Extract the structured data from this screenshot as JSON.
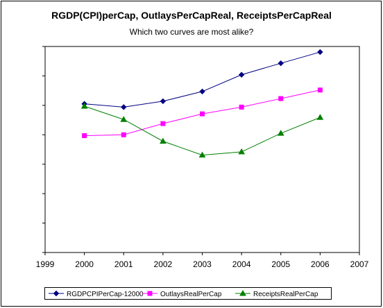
{
  "chart_data": {
    "type": "line",
    "title": "RGDP(CPI)perCap, OutlaysPerCapReal, ReceiptsPerCapReal",
    "subtitle": "Which two curves are most alike?",
    "xlabel": "",
    "ylabel": "",
    "x": [
      2000,
      2001,
      2002,
      2003,
      2004,
      2005,
      2006
    ],
    "xlim": [
      1999,
      2007
    ],
    "x_ticks": [
      "1999",
      "2000",
      "2001",
      "2002",
      "2003",
      "2004",
      "2005",
      "2006",
      "2007"
    ],
    "y_tick_count": 8,
    "y_tick_labels_shown": false,
    "grid": false,
    "legend_position": "bottom",
    "series": [
      {
        "name": "RGDPCPIPerCap-12000",
        "color": "#000080",
        "marker": "diamond",
        "values": [
          5.05,
          4.94,
          5.14,
          5.47,
          6.04,
          6.43,
          6.81
        ]
      },
      {
        "name": "OutlaysRealPerCap",
        "color": "#ff00ff",
        "marker": "square",
        "values": [
          3.97,
          4.0,
          4.38,
          4.71,
          4.94,
          5.23,
          5.52
        ]
      },
      {
        "name": "ReceiptsRealPerCap",
        "color": "#008000",
        "marker": "triangle",
        "values": [
          4.97,
          4.52,
          3.78,
          3.31,
          3.42,
          4.05,
          4.59
        ]
      }
    ]
  }
}
